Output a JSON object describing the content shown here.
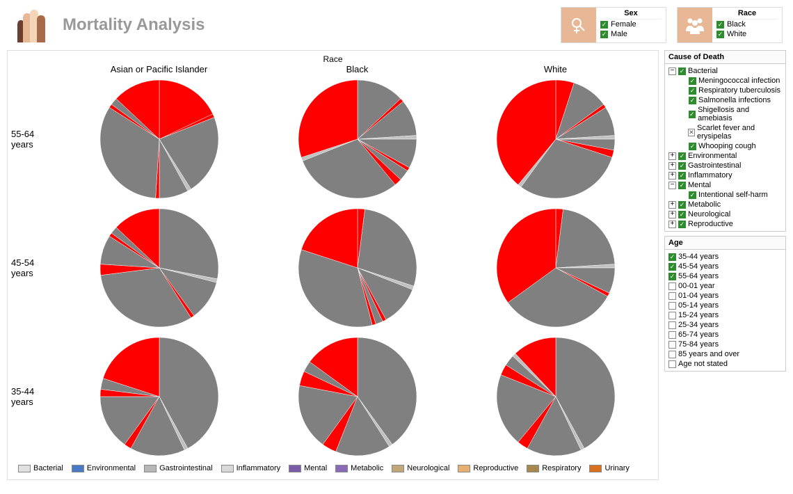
{
  "title": "Mortality Analysis",
  "filters": {
    "sex": {
      "title": "Sex",
      "items": [
        {
          "label": "Female",
          "checked": true
        },
        {
          "label": "Male",
          "checked": true
        }
      ]
    },
    "race": {
      "title": "Race",
      "items": [
        {
          "label": "Black",
          "checked": true
        },
        {
          "label": "White",
          "checked": true
        }
      ]
    }
  },
  "chart": {
    "header": "Race",
    "columns": [
      "Asian or Pacific Islander",
      "Black",
      "White"
    ],
    "rows": [
      "55-64 years",
      "45-54 years",
      "35-44 years"
    ],
    "pie_radius": 85,
    "legend": [
      {
        "label": "Bacterial",
        "color": "#e0e0e0"
      },
      {
        "label": "Environmental",
        "color": "#4a7ac7"
      },
      {
        "label": "Gastrointestinal",
        "color": "#b8b8b8"
      },
      {
        "label": "Inflammatory",
        "color": "#d8d8d8"
      },
      {
        "label": "Mental",
        "color": "#7a5ba8"
      },
      {
        "label": "Metabolic",
        "color": "#8a6bb8"
      },
      {
        "label": "Neurological",
        "color": "#c0a878"
      },
      {
        "label": "Reproductive",
        "color": "#e8b070"
      },
      {
        "label": "Respiratory",
        "color": "#a88850"
      },
      {
        "label": "Urinary",
        "color": "#d87020"
      }
    ],
    "colors": {
      "highlight": "#ff0000",
      "normal": "#808080",
      "thin": "#c0c0c0"
    },
    "pies": [
      [
        [
          {
            "v": 18,
            "c": "highlight"
          },
          {
            "v": 1,
            "c": "highlight"
          },
          {
            "v": 22,
            "c": "normal"
          },
          {
            "v": 1,
            "c": "thin"
          },
          {
            "v": 8,
            "c": "normal"
          },
          {
            "v": 1,
            "c": "highlight"
          },
          {
            "v": 33,
            "c": "normal"
          },
          {
            "v": 1,
            "c": "highlight"
          },
          {
            "v": 2,
            "c": "normal"
          },
          {
            "v": 13,
            "c": "highlight"
          }
        ],
        [
          {
            "v": 13,
            "c": "normal"
          },
          {
            "v": 1,
            "c": "highlight"
          },
          {
            "v": 10,
            "c": "normal"
          },
          {
            "v": 1,
            "c": "thin"
          },
          {
            "v": 8,
            "c": "normal"
          },
          {
            "v": 1,
            "c": "highlight"
          },
          {
            "v": 3,
            "c": "normal"
          },
          {
            "v": 2,
            "c": "highlight"
          },
          {
            "v": 30,
            "c": "normal"
          },
          {
            "v": 1,
            "c": "thin"
          },
          {
            "v": 30,
            "c": "highlight"
          }
        ],
        [
          {
            "v": 5,
            "c": "highlight"
          },
          {
            "v": 10,
            "c": "normal"
          },
          {
            "v": 1,
            "c": "highlight"
          },
          {
            "v": 8,
            "c": "normal"
          },
          {
            "v": 1,
            "c": "thin"
          },
          {
            "v": 3,
            "c": "normal"
          },
          {
            "v": 2,
            "c": "highlight"
          },
          {
            "v": 30,
            "c": "normal"
          },
          {
            "v": 1,
            "c": "thin"
          },
          {
            "v": 39,
            "c": "highlight"
          }
        ]
      ],
      [
        [
          {
            "v": 28,
            "c": "normal"
          },
          {
            "v": 1,
            "c": "thin"
          },
          {
            "v": 11,
            "c": "normal"
          },
          {
            "v": 1,
            "c": "highlight"
          },
          {
            "v": 32,
            "c": "normal"
          },
          {
            "v": 3,
            "c": "highlight"
          },
          {
            "v": 8,
            "c": "normal"
          },
          {
            "v": 1,
            "c": "highlight"
          },
          {
            "v": 2,
            "c": "normal"
          },
          {
            "v": 13,
            "c": "highlight"
          }
        ],
        [
          {
            "v": 2,
            "c": "highlight"
          },
          {
            "v": 28,
            "c": "normal"
          },
          {
            "v": 1,
            "c": "thin"
          },
          {
            "v": 11,
            "c": "normal"
          },
          {
            "v": 1,
            "c": "highlight"
          },
          {
            "v": 2,
            "c": "normal"
          },
          {
            "v": 1,
            "c": "highlight"
          },
          {
            "v": 34,
            "c": "normal"
          },
          {
            "v": 20,
            "c": "highlight"
          }
        ],
        [
          {
            "v": 2,
            "c": "highlight"
          },
          {
            "v": 22,
            "c": "normal"
          },
          {
            "v": 1,
            "c": "thin"
          },
          {
            "v": 7,
            "c": "normal"
          },
          {
            "v": 1,
            "c": "highlight"
          },
          {
            "v": 32,
            "c": "normal"
          },
          {
            "v": 35,
            "c": "highlight"
          }
        ]
      ],
      [
        [
          {
            "v": 42,
            "c": "normal"
          },
          {
            "v": 1,
            "c": "thin"
          },
          {
            "v": 15,
            "c": "normal"
          },
          {
            "v": 2,
            "c": "highlight"
          },
          {
            "v": 15,
            "c": "normal"
          },
          {
            "v": 2,
            "c": "highlight"
          },
          {
            "v": 3,
            "c": "normal"
          },
          {
            "v": 20,
            "c": "highlight"
          }
        ],
        [
          {
            "v": 40,
            "c": "normal"
          },
          {
            "v": 1,
            "c": "thin"
          },
          {
            "v": 15,
            "c": "normal"
          },
          {
            "v": 4,
            "c": "highlight"
          },
          {
            "v": 18,
            "c": "normal"
          },
          {
            "v": 4,
            "c": "highlight"
          },
          {
            "v": 3,
            "c": "normal"
          },
          {
            "v": 15,
            "c": "highlight"
          }
        ],
        [
          {
            "v": 42,
            "c": "normal"
          },
          {
            "v": 1,
            "c": "thin"
          },
          {
            "v": 15,
            "c": "normal"
          },
          {
            "v": 3,
            "c": "highlight"
          },
          {
            "v": 20,
            "c": "normal"
          },
          {
            "v": 3,
            "c": "highlight"
          },
          {
            "v": 3,
            "c": "normal"
          },
          {
            "v": 1,
            "c": "thin"
          },
          {
            "v": 12,
            "c": "highlight"
          }
        ]
      ]
    ]
  },
  "cause_panel": {
    "title": "Cause of Death",
    "tree": [
      {
        "label": "Bacterial",
        "checked": true,
        "expanded": true,
        "children": [
          {
            "label": "Meningococcal infection",
            "checked": true
          },
          {
            "label": "Respiratory tuberculosis",
            "checked": true
          },
          {
            "label": "Salmonella infections",
            "checked": true
          },
          {
            "label": "Shigellosis and amebiasis",
            "checked": true
          },
          {
            "label": "Scarlet fever and erysipelas",
            "partial": true
          },
          {
            "label": "Whooping cough",
            "checked": true
          }
        ]
      },
      {
        "label": "Environmental",
        "checked": true,
        "expanded": false
      },
      {
        "label": "Gastrointestinal",
        "checked": true,
        "expanded": false
      },
      {
        "label": "Inflammatory",
        "checked": true,
        "expanded": false
      },
      {
        "label": "Mental",
        "checked": true,
        "expanded": true,
        "children": [
          {
            "label": "Intentional self-harm",
            "checked": true
          }
        ]
      },
      {
        "label": "Metabolic",
        "checked": true,
        "expanded": false
      },
      {
        "label": "Neurological",
        "checked": true,
        "expanded": false
      },
      {
        "label": "Reproductive",
        "checked": true,
        "expanded": false
      }
    ]
  },
  "age_panel": {
    "title": "Age",
    "items": [
      {
        "label": "35-44 years",
        "checked": true
      },
      {
        "label": "45-54 years",
        "checked": true
      },
      {
        "label": "55-64 years",
        "checked": true
      },
      {
        "label": "00-01 year",
        "checked": false
      },
      {
        "label": "01-04 years",
        "checked": false
      },
      {
        "label": "05-14 years",
        "checked": false
      },
      {
        "label": "15-24 years",
        "checked": false
      },
      {
        "label": "25-34 years",
        "checked": false
      },
      {
        "label": "65-74 years",
        "checked": false
      },
      {
        "label": "75-84 years",
        "checked": false
      },
      {
        "label": "85 years and over",
        "checked": false
      },
      {
        "label": "Age not stated",
        "checked": false
      }
    ]
  }
}
